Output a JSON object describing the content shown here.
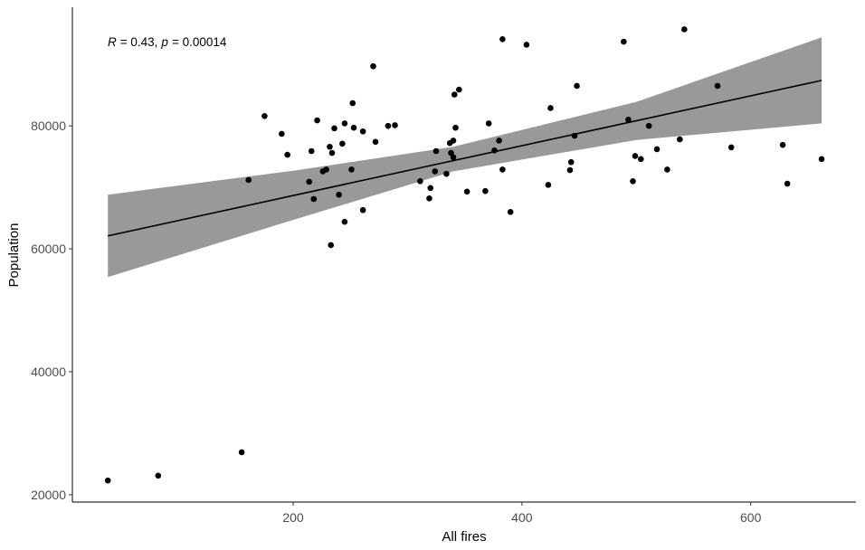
{
  "chart_data": {
    "type": "scatter",
    "x_label": "All fires",
    "y_label": "Population",
    "annotation": [
      "R",
      "= 0.43,",
      "p",
      "= 0.00014"
    ],
    "xlim": [
      7,
      692
    ],
    "ylim": [
      18800,
      99300
    ],
    "xticks": [
      200,
      400,
      600
    ],
    "yticks": [
      20000,
      40000,
      60000,
      80000
    ],
    "grid": false,
    "color": "#000000",
    "band_color": "#999999",
    "x": [
      38,
      82,
      155,
      161,
      175,
      190,
      195,
      214,
      216,
      218,
      221,
      226,
      229,
      232,
      233,
      234,
      236,
      240,
      243,
      245,
      245,
      251,
      252,
      253,
      261,
      261,
      270,
      272,
      283,
      289,
      311,
      319,
      320,
      325,
      324,
      334,
      337,
      338,
      340,
      340,
      341,
      342,
      345,
      352,
      368,
      371,
      376,
      380,
      383,
      383,
      390,
      404,
      423,
      425,
      442,
      443,
      446,
      448,
      489,
      493,
      497,
      499,
      504,
      511,
      518,
      527,
      538,
      542,
      571,
      583,
      628,
      632,
      662
    ],
    "y": [
      22300,
      23100,
      26900,
      71200,
      81600,
      78700,
      75300,
      70900,
      75900,
      68100,
      80900,
      72600,
      72900,
      76600,
      60600,
      75600,
      79600,
      68800,
      77100,
      80400,
      64400,
      72900,
      83700,
      79700,
      79100,
      66300,
      89700,
      77400,
      80000,
      80100,
      71000,
      68200,
      69900,
      75900,
      72600,
      72200,
      77200,
      75600,
      74900,
      77600,
      85100,
      79700,
      85900,
      69300,
      69400,
      80400,
      76000,
      77600,
      94100,
      72900,
      66000,
      93200,
      70400,
      82900,
      72800,
      74100,
      78400,
      86500,
      93700,
      81000,
      71000,
      75100,
      74600,
      80000,
      76200,
      72900,
      77800,
      95700,
      86500,
      76500,
      76900,
      70600,
      74600
    ],
    "fit": {
      "x": [
        38,
        662
      ],
      "y": [
        62100,
        87400
      ],
      "color": "#000000"
    },
    "band": {
      "x": [
        38,
        200,
        340,
        500,
        662
      ],
      "lower": [
        55400,
        64700,
        72600,
        77700,
        80400
      ],
      "upper": [
        68800,
        72700,
        76600,
        83900,
        94400
      ]
    }
  }
}
